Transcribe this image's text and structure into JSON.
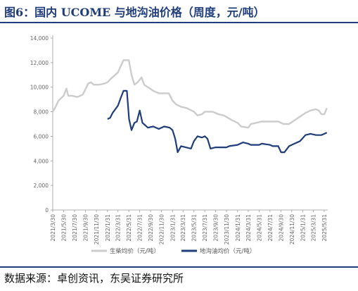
{
  "header": {
    "title": "图6：国内 UCOME 与地沟油价格（周度，元/吨）",
    "source": "数据来源：卓创资讯，东吴证券研究所"
  },
  "chart_data": {
    "type": "line",
    "ylim": [
      0,
      14000
    ],
    "yticks": [
      0,
      2000,
      4000,
      6000,
      8000,
      10000,
      12000,
      14000
    ],
    "ytick_labels": [
      "0",
      "2,000",
      "4,000",
      "6,000",
      "8,000",
      "10,000",
      "12,000",
      "14,000"
    ],
    "xticks": [
      "2021/3/30",
      "2021/5/30",
      "2021/7/30",
      "2021/9/30",
      "2021/11/30",
      "2022/1/31",
      "2022/3/31",
      "2022/5/31",
      "2022/7/31",
      "2022/9/30",
      "2022/11/30",
      "2023/1/31",
      "2023/3/31",
      "2023/5/31",
      "2023/7/31",
      "2023/9/30",
      "2023/11/30",
      "2024/1/31",
      "2024/3/31",
      "2024/5/31",
      "2024/7/31",
      "2024/9/30",
      "2024/11/30",
      "2025/1/31",
      "2025/3/31",
      "2025/5/31"
    ],
    "grid": false,
    "legend": "bottom",
    "series": [
      {
        "name": "生柴均价（元/吨）",
        "color": "#cccccc",
        "points": [
          [
            "2021/3/30",
            8000
          ],
          [
            "2021/4/15",
            8400
          ],
          [
            "2021/5/1",
            8900
          ],
          [
            "2021/5/30",
            9300
          ],
          [
            "2021/6/15",
            9900
          ],
          [
            "2021/6/25",
            9300
          ],
          [
            "2021/7/15",
            9300
          ],
          [
            "2021/8/15",
            9200
          ],
          [
            "2021/9/15",
            9400
          ],
          [
            "2021/10/15",
            10300
          ],
          [
            "2021/10/30",
            10400
          ],
          [
            "2021/11/15",
            10200
          ],
          [
            "2021/12/15",
            10200
          ],
          [
            "2022/1/15",
            10300
          ],
          [
            "2022/1/31",
            10400
          ],
          [
            "2022/2/20",
            10700
          ],
          [
            "2022/3/15",
            11000
          ],
          [
            "2022/3/31",
            11200
          ],
          [
            "2022/4/15",
            11700
          ],
          [
            "2022/5/1",
            12200
          ],
          [
            "2022/5/31",
            12200
          ],
          [
            "2022/6/15",
            11000
          ],
          [
            "2022/7/1",
            10200
          ],
          [
            "2022/7/20",
            10400
          ],
          [
            "2022/8/10",
            10800
          ],
          [
            "2022/8/25",
            10200
          ],
          [
            "2022/9/15",
            10000
          ],
          [
            "2022/10/15",
            9700
          ],
          [
            "2022/11/15",
            9500
          ],
          [
            "2022/12/15",
            9500
          ],
          [
            "2023/1/10",
            9500
          ],
          [
            "2023/1/31",
            8900
          ],
          [
            "2023/2/20",
            8600
          ],
          [
            "2023/3/20",
            8400
          ],
          [
            "2023/4/20",
            8300
          ],
          [
            "2023/5/31",
            8000
          ],
          [
            "2023/6/20",
            7700
          ],
          [
            "2023/7/15",
            7800
          ],
          [
            "2023/7/31",
            8000
          ],
          [
            "2023/9/15",
            8000
          ],
          [
            "2023/10/15",
            7800
          ],
          [
            "2023/11/15",
            7700
          ],
          [
            "2024/1/1",
            7300
          ],
          [
            "2024/1/31",
            7100
          ],
          [
            "2024/2/20",
            6800
          ],
          [
            "2024/3/31",
            6700
          ],
          [
            "2024/4/15",
            7000
          ],
          [
            "2024/5/15",
            7100
          ],
          [
            "2024/6/15",
            7200
          ],
          [
            "2024/7/15",
            7200
          ],
          [
            "2024/8/15",
            7200
          ],
          [
            "2024/9/15",
            7200
          ],
          [
            "2024/10/15",
            7000
          ],
          [
            "2024/11/15",
            7000
          ],
          [
            "2024/12/15",
            7300
          ],
          [
            "2025/1/15",
            7600
          ],
          [
            "2025/2/15",
            7900
          ],
          [
            "2025/3/15",
            8100
          ],
          [
            "2025/4/15",
            8200
          ],
          [
            "2025/5/1",
            8100
          ],
          [
            "2025/5/15",
            7800
          ],
          [
            "2025/6/1",
            7800
          ],
          [
            "2025/6/15",
            8300
          ]
        ]
      },
      {
        "name": "地沟油均价（元/吨）",
        "color": "#1f3d7a",
        "points": [
          [
            "2022/1/31",
            7400
          ],
          [
            "2022/2/15",
            7500
          ],
          [
            "2022/3/1",
            7900
          ],
          [
            "2022/3/31",
            8500
          ],
          [
            "2022/4/15",
            9100
          ],
          [
            "2022/5/1",
            9700
          ],
          [
            "2022/5/20",
            9700
          ],
          [
            "2022/6/1",
            7400
          ],
          [
            "2022/6/15",
            6500
          ],
          [
            "2022/7/1",
            7100
          ],
          [
            "2022/7/15",
            7200
          ],
          [
            "2022/7/31",
            8100
          ],
          [
            "2022/8/15",
            7100
          ],
          [
            "2022/9/15",
            6700
          ],
          [
            "2022/10/15",
            6800
          ],
          [
            "2022/11/15",
            6600
          ],
          [
            "2022/12/15",
            6800
          ],
          [
            "2023/1/15",
            6700
          ],
          [
            "2023/1/31",
            6500
          ],
          [
            "2023/2/15",
            5800
          ],
          [
            "2023/3/1",
            4700
          ],
          [
            "2023/3/20",
            5200
          ],
          [
            "2023/4/15",
            5100
          ],
          [
            "2023/5/15",
            5000
          ],
          [
            "2023/5/31",
            5600
          ],
          [
            "2023/6/20",
            6000
          ],
          [
            "2023/7/15",
            5900
          ],
          [
            "2023/7/31",
            6000
          ],
          [
            "2023/8/15",
            5800
          ],
          [
            "2023/9/1",
            5000
          ],
          [
            "2023/9/30",
            5100
          ],
          [
            "2023/11/30",
            5100
          ],
          [
            "2023/12/15",
            5200
          ],
          [
            "2024/1/31",
            5300
          ],
          [
            "2024/3/1",
            5500
          ],
          [
            "2024/3/31",
            5400
          ],
          [
            "2024/4/15",
            5300
          ],
          [
            "2024/5/31",
            5300
          ],
          [
            "2024/6/15",
            5400
          ],
          [
            "2024/7/31",
            5300
          ],
          [
            "2024/8/15",
            5200
          ],
          [
            "2024/9/15",
            5200
          ],
          [
            "2024/10/1",
            4700
          ],
          [
            "2024/10/20",
            4700
          ],
          [
            "2024/11/15",
            5200
          ],
          [
            "2024/12/15",
            5400
          ],
          [
            "2025/1/15",
            5600
          ],
          [
            "2025/2/15",
            6100
          ],
          [
            "2025/3/15",
            6200
          ],
          [
            "2025/4/15",
            6100
          ],
          [
            "2025/5/15",
            6100
          ],
          [
            "2025/6/1",
            6200
          ],
          [
            "2025/6/15",
            6300
          ]
        ]
      }
    ]
  }
}
